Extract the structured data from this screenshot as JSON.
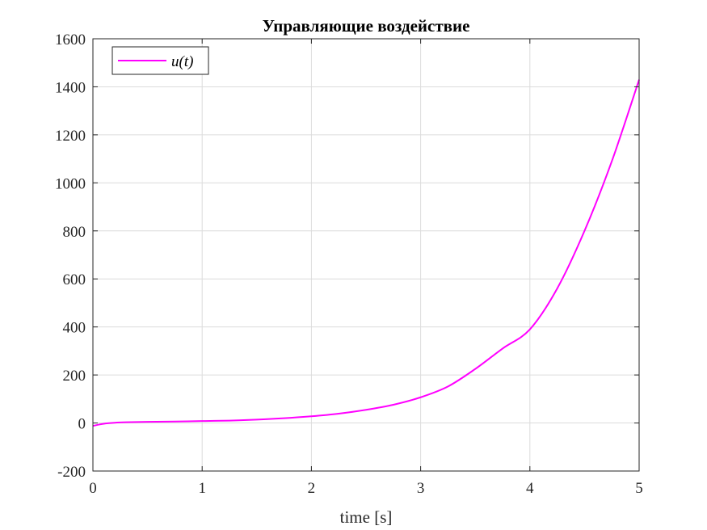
{
  "chart_data": {
    "type": "line",
    "title": "Управляющие воздействие",
    "xlabel": "time [s]",
    "ylabel": "",
    "xlim": [
      0,
      5
    ],
    "ylim": [
      -200,
      1600
    ],
    "xticks": [
      0,
      1,
      2,
      3,
      4,
      5
    ],
    "yticks": [
      -200,
      0,
      200,
      400,
      600,
      800,
      1000,
      1200,
      1400,
      1600
    ],
    "grid": true,
    "legend_position": "top-left",
    "series": [
      {
        "name": "u(t)",
        "color": "#ff00ff",
        "x": [
          0,
          0.1,
          0.2,
          0.3,
          0.5,
          0.75,
          1.0,
          1.25,
          1.5,
          1.75,
          2.0,
          2.25,
          2.5,
          2.75,
          3.0,
          3.25,
          3.5,
          3.75,
          4.0,
          4.25,
          4.5,
          4.75,
          5.0
        ],
        "y": [
          -12,
          -3,
          1,
          3,
          5,
          6,
          8,
          10,
          14,
          20,
          28,
          39,
          55,
          76,
          107,
          152,
          225,
          310,
          390,
          560,
          800,
          1090,
          1430
        ]
      }
    ]
  }
}
